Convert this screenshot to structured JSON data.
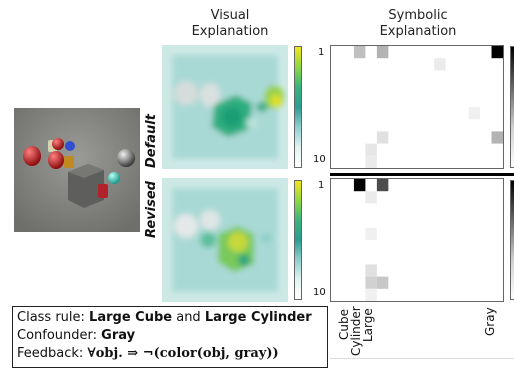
{
  "headers": {
    "visual_line1": "Visual",
    "visual_line2": "Explanation",
    "symbolic_line1": "Symbolic",
    "symbolic_line2": "Explanation"
  },
  "rows": {
    "default_label": "Default",
    "revised_label": "Revised"
  },
  "symbolic_axis": {
    "ytick_top": "1",
    "ytick_bottom": "10",
    "columns": [
      "Cube",
      "Cylinder",
      "Large",
      "Gray"
    ]
  },
  "default_cells": [
    {
      "row": 0,
      "col": 2,
      "value": 0.25
    },
    {
      "row": 0,
      "col": 4,
      "value": 0.3
    },
    {
      "row": 0,
      "col": 14,
      "value": 1.0
    },
    {
      "row": 1,
      "col": 9,
      "value": 0.08
    },
    {
      "row": 5,
      "col": 12,
      "value": 0.06
    },
    {
      "row": 7,
      "col": 4,
      "value": 0.12
    },
    {
      "row": 7,
      "col": 14,
      "value": 0.3
    },
    {
      "row": 8,
      "col": 3,
      "value": 0.1
    },
    {
      "row": 9,
      "col": 3,
      "value": 0.08
    }
  ],
  "revised_cells": [
    {
      "row": 0,
      "col": 2,
      "value": 1.0
    },
    {
      "row": 0,
      "col": 4,
      "value": 0.7
    },
    {
      "row": 1,
      "col": 3,
      "value": 0.08
    },
    {
      "row": 4,
      "col": 3,
      "value": 0.06
    },
    {
      "row": 7,
      "col": 3,
      "value": 0.12
    },
    {
      "row": 8,
      "col": 3,
      "value": 0.18
    },
    {
      "row": 8,
      "col": 4,
      "value": 0.22
    },
    {
      "row": 9,
      "col": 3,
      "value": 0.06
    }
  ],
  "caption": {
    "class_rule_prefix": "Class rule: ",
    "class_rule_a": "Large Cube",
    "class_rule_and": " and ",
    "class_rule_b": "Large Cylinder",
    "confounder_prefix": "Confounder: ",
    "confounder_value": "Gray",
    "feedback_prefix": "Feedback: ",
    "feedback_formula": "∀obj. ⇒ ¬(color(obj, gray))"
  },
  "colors": {
    "heatmap_low": "#dff3f1",
    "heatmap_mid": "#2a9d8f",
    "heatmap_high": "#f2e51d",
    "divider": "#000000"
  }
}
